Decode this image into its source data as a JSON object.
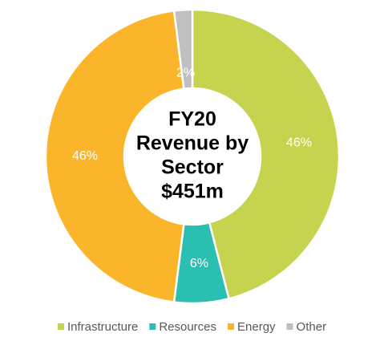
{
  "chart_data": {
    "type": "pie",
    "center_text": [
      "FY20",
      "Revenue by",
      "Sector",
      "$451m"
    ],
    "categories": [
      "Infrastructure",
      "Resources",
      "Energy",
      "Other"
    ],
    "values": [
      46,
      6,
      46,
      2
    ],
    "value_labels": [
      "46%",
      "6%",
      "46%",
      "2%"
    ],
    "colors": [
      "#c6d34f",
      "#2bbfb1",
      "#fbb52a",
      "#bfbfbf"
    ],
    "legend": "bottom"
  }
}
